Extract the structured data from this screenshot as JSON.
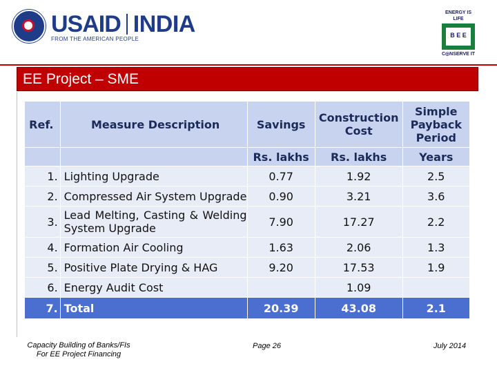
{
  "header": {
    "brand_primary": "USAID",
    "brand_country": "INDIA",
    "tagline": "FROM THE AMERICAN PEOPLE",
    "bee_top": "ENERGY IS LIFE",
    "bee_mark": "B E E",
    "bee_bottom": "C◎NSERVE IT"
  },
  "title": "EE Project – SME",
  "table": {
    "headers": {
      "ref": "Ref.",
      "description": "Measure Description",
      "savings": "Savings",
      "construction_cost": "Construction Cost",
      "payback": "Simple Payback Period"
    },
    "units": {
      "savings": "Rs. lakhs",
      "construction_cost": "Rs. lakhs",
      "payback": "Years"
    },
    "rows": [
      {
        "ref": "1.",
        "description": "Lighting Upgrade",
        "savings": "0.77",
        "cost": "1.92",
        "payback": "2.5"
      },
      {
        "ref": "2.",
        "description": "Compressed Air System Upgrade",
        "savings": "0.90",
        "cost": "3.21",
        "payback": "3.6"
      },
      {
        "ref": "3.",
        "description": "Lead Melting, Casting & Welding System Upgrade",
        "savings": "7.90",
        "cost": "17.27",
        "payback": "2.2"
      },
      {
        "ref": "4.",
        "description": "Formation Air Cooling",
        "savings": "1.63",
        "cost": "2.06",
        "payback": "1.3"
      },
      {
        "ref": "5.",
        "description": "Positive Plate Drying & HAG",
        "savings": "9.20",
        "cost": "17.53",
        "payback": "1.9"
      },
      {
        "ref": "6.",
        "description": "Energy Audit Cost",
        "savings": "",
        "cost": "1.09",
        "payback": ""
      }
    ],
    "total": {
      "ref": "7.",
      "description": "Total",
      "savings": "20.39",
      "cost": "43.08",
      "payback": "2.1"
    }
  },
  "footer": {
    "left_line1": "Capacity Building of Banks/FIs",
    "left_line2": "For EE Project Financing",
    "page": "Page 26",
    "date": "July 2014"
  },
  "colors": {
    "title_band": "#c00000",
    "header_row": "#c8d3ef",
    "body_row": "#e8ecf7",
    "total_row": "#4a6fd0"
  }
}
